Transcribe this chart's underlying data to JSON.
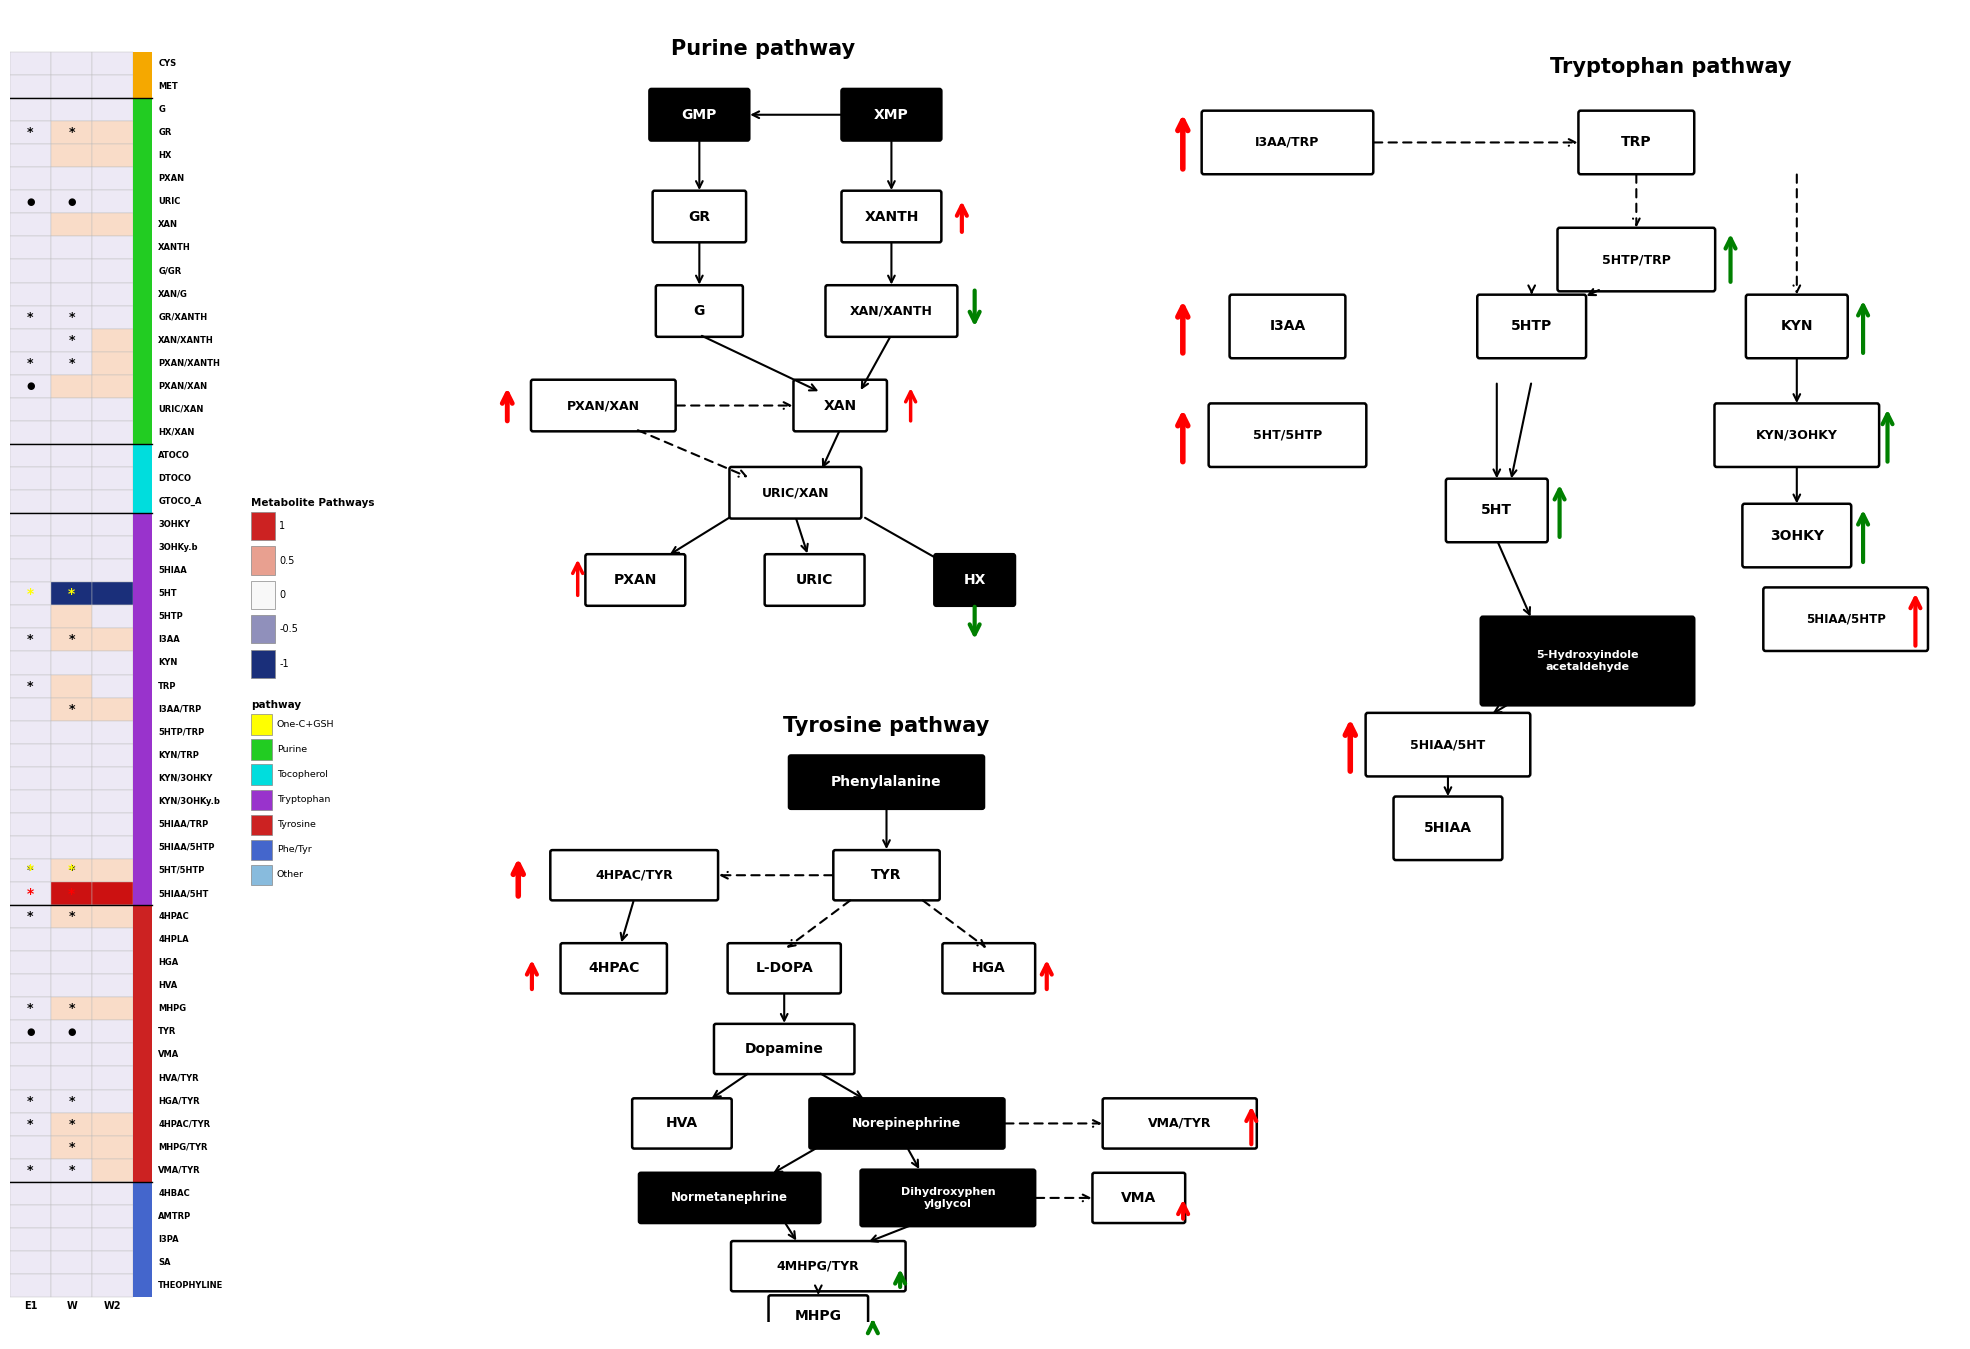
{
  "heatmap_rows": [
    "CYS",
    "MET",
    "G",
    "GR",
    "HX",
    "PXAN",
    "URIC",
    "XAN",
    "XANTH",
    "G/GR",
    "XAN/G",
    "GR/XANTH",
    "XAN/XANTH",
    "PXAN/XANTH",
    "PXAN/XAN",
    "URIC/XAN",
    "HX/XAN",
    "ATOCO",
    "DTOCO",
    "GTOCO_A",
    "3OHKY",
    "3OHKy.b",
    "5HIAA",
    "5HT",
    "5HTP",
    "I3AA",
    "KYN",
    "TRP",
    "I3AA/TRP",
    "5HTP/TRP",
    "KYN/TRP",
    "KYN/3OHKY",
    "KYN/3OHKy.b",
    "5HIAA/TRP",
    "5HIAA/5HTP",
    "5HT/5HTP",
    "5HIAA/5HT",
    "4HPAC",
    "4HPLA",
    "HGA",
    "HVA",
    "MHPG",
    "TYR",
    "VMA",
    "HVA/TYR",
    "HGA/TYR",
    "4HPAC/TYR",
    "MHPG/TYR",
    "VMA/TYR",
    "4HBAC",
    "AMTRP",
    "I3PA",
    "SA",
    "THEOPHYLINE"
  ],
  "col1_colors": [
    "#ede9f5",
    "#ede9f5",
    "#ede9f5",
    "#ede9f5",
    "#ede9f5",
    "#ede9f5",
    "#ede9f5",
    "#ede9f5",
    "#ede9f5",
    "#ede9f5",
    "#ede9f5",
    "#ede9f5",
    "#ede9f5",
    "#ede9f5",
    "#ede9f5",
    "#ede9f5",
    "#ede9f5",
    "#ede9f5",
    "#ede9f5",
    "#ede9f5",
    "#ede9f5",
    "#ede9f5",
    "#ede9f5",
    "#ede9f5",
    "#ede9f5",
    "#ede9f5",
    "#ede9f5",
    "#ede9f5",
    "#ede9f5",
    "#ede9f5",
    "#ede9f5",
    "#ede9f5",
    "#ede9f5",
    "#ede9f5",
    "#ede9f5",
    "#ede9f5",
    "#ede9f5",
    "#ede9f5",
    "#ede9f5",
    "#ede9f5",
    "#ede9f5",
    "#ede9f5",
    "#ede9f5",
    "#ede9f5",
    "#ede9f5",
    "#ede9f5",
    "#ede9f5",
    "#ede9f5",
    "#ede9f5",
    "#ede9f5",
    "#ede9f5",
    "#ede9f5",
    "#ede9f5",
    "#ede9f5"
  ],
  "col2_colors": [
    "#ede9f5",
    "#ede9f5",
    "#ede9f5",
    "#f9dcc8",
    "#f9dcc8",
    "#ede9f5",
    "#ede9f5",
    "#f9dcc8",
    "#ede9f5",
    "#ede9f5",
    "#ede9f5",
    "#ede9f5",
    "#ede9f5",
    "#ede9f5",
    "#f9dcc8",
    "#ede9f5",
    "#ede9f5",
    "#ede9f5",
    "#ede9f5",
    "#ede9f5",
    "#ede9f5",
    "#ede9f5",
    "#ede9f5",
    "#1a2f7a",
    "#f9dcc8",
    "#f9dcc8",
    "#ede9f5",
    "#f9dcc8",
    "#f9dcc8",
    "#ede9f5",
    "#ede9f5",
    "#ede9f5",
    "#ede9f5",
    "#ede9f5",
    "#ede9f5",
    "#f9dcc8",
    "#cc1111",
    "#f9dcc8",
    "#ede9f5",
    "#ede9f5",
    "#ede9f5",
    "#f9dcc8",
    "#ede9f5",
    "#ede9f5",
    "#ede9f5",
    "#ede9f5",
    "#f9dcc8",
    "#f9dcc8",
    "#ede9f5",
    "#ede9f5",
    "#ede9f5",
    "#ede9f5",
    "#ede9f5",
    "#ede9f5"
  ],
  "col3_colors": [
    "#ede9f5",
    "#ede9f5",
    "#ede9f5",
    "#f9dcc8",
    "#f9dcc8",
    "#ede9f5",
    "#ede9f5",
    "#f9dcc8",
    "#ede9f5",
    "#ede9f5",
    "#ede9f5",
    "#ede9f5",
    "#f9dcc8",
    "#f9dcc8",
    "#f9dcc8",
    "#ede9f5",
    "#ede9f5",
    "#ede9f5",
    "#ede9f5",
    "#ede9f5",
    "#ede9f5",
    "#ede9f5",
    "#ede9f5",
    "#1a2f7a",
    "#ede9f5",
    "#f9dcc8",
    "#ede9f5",
    "#ede9f5",
    "#f9dcc8",
    "#ede9f5",
    "#ede9f5",
    "#ede9f5",
    "#ede9f5",
    "#ede9f5",
    "#ede9f5",
    "#f9dcc8",
    "#cc1111",
    "#f9dcc8",
    "#ede9f5",
    "#ede9f5",
    "#ede9f5",
    "#f9dcc8",
    "#ede9f5",
    "#ede9f5",
    "#ede9f5",
    "#ede9f5",
    "#f9dcc8",
    "#f9dcc8",
    "#f9dcc8",
    "#ede9f5",
    "#ede9f5",
    "#ede9f5",
    "#ede9f5",
    "#ede9f5"
  ],
  "sidebar_colors": [
    "#f5a800",
    "#f5a800",
    "#22cc22",
    "#22cc22",
    "#22cc22",
    "#22cc22",
    "#22cc22",
    "#22cc22",
    "#22cc22",
    "#22cc22",
    "#22cc22",
    "#22cc22",
    "#22cc22",
    "#22cc22",
    "#22cc22",
    "#22cc22",
    "#22cc22",
    "#00dddd",
    "#00dddd",
    "#00dddd",
    "#9933cc",
    "#9933cc",
    "#9933cc",
    "#9933cc",
    "#9933cc",
    "#9933cc",
    "#9933cc",
    "#9933cc",
    "#9933cc",
    "#9933cc",
    "#9933cc",
    "#9933cc",
    "#9933cc",
    "#9933cc",
    "#9933cc",
    "#9933cc",
    "#9933cc",
    "#cc2222",
    "#cc2222",
    "#cc2222",
    "#cc2222",
    "#cc2222",
    "#cc2222",
    "#cc2222",
    "#cc2222",
    "#cc2222",
    "#cc2222",
    "#cc2222",
    "#cc2222",
    "#4466cc",
    "#4466cc",
    "#4466cc",
    "#4466cc",
    "#4466cc"
  ],
  "asterisk_rows_col2": [
    3,
    11,
    13,
    25,
    27,
    35,
    37,
    41,
    45,
    46,
    48
  ],
  "asterisk_rows_col3": [
    3,
    11,
    12,
    13,
    25,
    28,
    35,
    37,
    41,
    45,
    46,
    47,
    48
  ],
  "dot_rows_col2": [
    6,
    14,
    42
  ],
  "dot_rows_col3": [
    6,
    42
  ],
  "yellow_ast_rows_col2": [
    23,
    35
  ],
  "yellow_ast_rows_col3": [
    23,
    35
  ],
  "red_ast_rows_col2": [
    36
  ],
  "red_ast_rows_col3": [
    36
  ],
  "col_labels": [
    "E1",
    "W",
    "W2"
  ],
  "dividers": [
    2,
    17,
    20,
    37,
    49
  ]
}
